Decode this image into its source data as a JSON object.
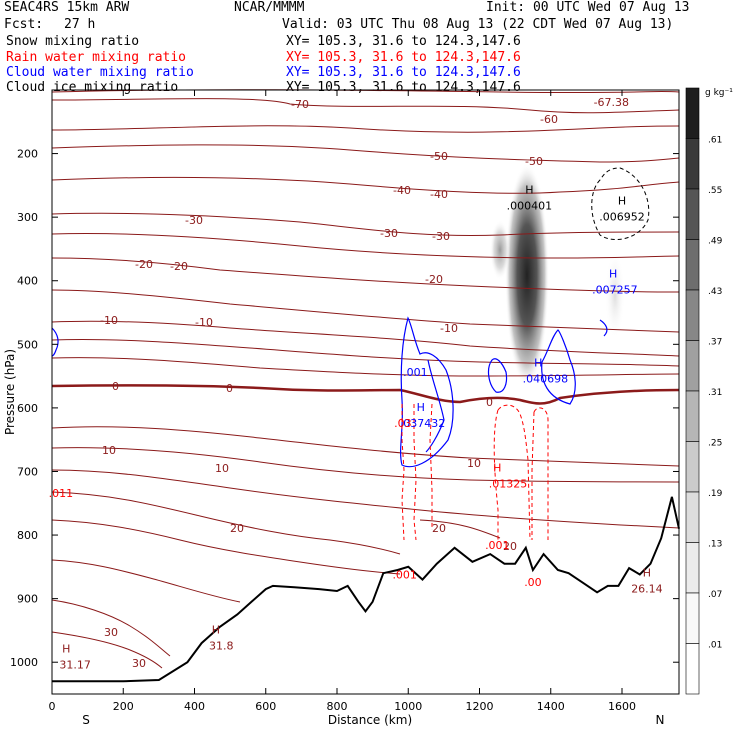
{
  "header": {
    "model": "SEAC4RS 15km ARW",
    "org": "NCAR/MMMM",
    "init": "Init: 00 UTC Wed 07 Aug 13",
    "fcst_label": "Fcst:",
    "fcst_value": "27 h",
    "valid": "Valid: 03 UTC Thu 08 Aug 13 (22 CDT Wed 07 Aug 13)",
    "fields": [
      {
        "label": "Snow mixing ratio",
        "xy": "XY= 105.3, 31.6 to 124.3,147.6",
        "color": "#000000"
      },
      {
        "label": "Rain water mixing ratio",
        "xy": "XY= 105.3, 31.6 to 124.3,147.6",
        "color": "#ff0000"
      },
      {
        "label": "Cloud water mixing ratio",
        "xy": "XY= 105.3, 31.6 to 124.3,147.6",
        "color": "#0000ff"
      },
      {
        "label": "Cloud ice mixing ratio",
        "xy": "XY= 105.3, 31.6 to 124.3,147.6",
        "color": "#000000"
      }
    ]
  },
  "chart_data": {
    "type": "cross-section contour",
    "xlabel": "Distance (km)",
    "ylabel": "Pressure (hPa)",
    "xlim": [
      0,
      1760
    ],
    "ylim": [
      1050,
      100
    ],
    "x_ticks": [
      0,
      200,
      400,
      600,
      800,
      1000,
      1200,
      1400,
      1600
    ],
    "y_ticks": [
      200,
      300,
      400,
      500,
      600,
      700,
      800,
      900,
      1000
    ],
    "end_labels": {
      "left": "S",
      "right": "N"
    },
    "colorbar": {
      "unit": "g kg⁻¹",
      "ticks": [
        ".61",
        ".55",
        ".49",
        ".43",
        ".37",
        ".31",
        ".25",
        ".19",
        ".13",
        ".07",
        ".01"
      ],
      "colors": [
        "#1e1e1e",
        "#3a3a3a",
        "#555555",
        "#6e6e6e",
        "#878787",
        "#a0a0a0",
        "#b6b6b6",
        "#cbcbcb",
        "#dddddd",
        "#ececec",
        "#f8f8f8",
        "#ffffff"
      ]
    },
    "isotherms_celsius": [
      {
        "value": -70,
        "label": "-70"
      },
      {
        "value": -60,
        "label": "-60"
      },
      {
        "value": -50,
        "label": "-50"
      },
      {
        "value": -40,
        "label": "-40"
      },
      {
        "value": -30,
        "label": "-30"
      },
      {
        "value": -20,
        "label": "-20"
      },
      {
        "value": -10,
        "label": "-10"
      },
      {
        "value": 0,
        "label": "0"
      },
      {
        "value": 10,
        "label": "10"
      },
      {
        "value": 20,
        "label": "20"
      },
      {
        "value": 30,
        "label": "30"
      }
    ],
    "annotations": [
      {
        "text": "-67.38",
        "x": 1570,
        "p": 125,
        "color": "#8b1a1a"
      },
      {
        "text": "H",
        "x": 1340,
        "p": 263,
        "color": "#000000"
      },
      {
        "text": ".000401",
        "x": 1340,
        "p": 288,
        "color": "#000000"
      },
      {
        "text": "H",
        "x": 1600,
        "p": 280,
        "color": "#000000"
      },
      {
        "text": ".006952",
        "x": 1600,
        "p": 305,
        "color": "#000000"
      },
      {
        "text": "H",
        "x": 1575,
        "p": 395,
        "color": "#0000ff"
      },
      {
        "text": ".007257",
        "x": 1580,
        "p": 420,
        "color": "#0000ff"
      },
      {
        "text": "H",
        "x": 1365,
        "p": 535,
        "color": "#0000ff"
      },
      {
        "text": ".040698",
        "x": 1385,
        "p": 560,
        "color": "#0000ff"
      },
      {
        "text": ".001",
        "x": 1020,
        "p": 550,
        "color": "#0000ff"
      },
      {
        "text": "H",
        "x": 1035,
        "p": 605,
        "color": "#0000ff"
      },
      {
        "text": ".037432",
        "x": 1040,
        "p": 630,
        "color": "#0000ff"
      },
      {
        "text": ".03",
        "x": 985,
        "p": 630,
        "color": "#ff0000"
      },
      {
        "text": "H",
        "x": 1250,
        "p": 700,
        "color": "#ff0000"
      },
      {
        "text": ".01325",
        "x": 1280,
        "p": 725,
        "color": "#ff0000"
      },
      {
        "text": ".001",
        "x": 1250,
        "p": 822,
        "color": "#ff0000"
      },
      {
        "text": ".001",
        "x": 990,
        "p": 868,
        "color": "#ff0000"
      },
      {
        "text": ".00",
        "x": 1350,
        "p": 880,
        "color": "#ff0000"
      },
      {
        "text": ".011",
        "x": 25,
        "p": 740,
        "color": "#ff0000"
      },
      {
        "text": "H",
        "x": 40,
        "p": 985,
        "color": "#8b1a1a"
      },
      {
        "text": "31.17",
        "x": 65,
        "p": 1010,
        "color": "#8b1a1a"
      },
      {
        "text": "H",
        "x": 460,
        "p": 955,
        "color": "#8b1a1a"
      },
      {
        "text": "31.8",
        "x": 475,
        "p": 980,
        "color": "#8b1a1a"
      },
      {
        "text": "H",
        "x": 1670,
        "p": 865,
        "color": "#8b1a1a"
      },
      {
        "text": "26.14",
        "x": 1670,
        "p": 890,
        "color": "#8b1a1a"
      }
    ],
    "terrain_pressure_hpa": [
      [
        0,
        1030
      ],
      [
        100,
        1030
      ],
      [
        200,
        1030
      ],
      [
        300,
        1028
      ],
      [
        380,
        1000
      ],
      [
        420,
        970
      ],
      [
        470,
        945
      ],
      [
        520,
        925
      ],
      [
        560,
        905
      ],
      [
        600,
        885
      ],
      [
        620,
        880
      ],
      [
        680,
        882
      ],
      [
        750,
        885
      ],
      [
        800,
        888
      ],
      [
        830,
        880
      ],
      [
        860,
        905
      ],
      [
        880,
        920
      ],
      [
        900,
        905
      ],
      [
        930,
        860
      ],
      [
        970,
        855
      ],
      [
        1000,
        850
      ],
      [
        1040,
        870
      ],
      [
        1080,
        845
      ],
      [
        1130,
        820
      ],
      [
        1180,
        842
      ],
      [
        1230,
        830
      ],
      [
        1270,
        845
      ],
      [
        1300,
        845
      ],
      [
        1330,
        820
      ],
      [
        1350,
        855
      ],
      [
        1380,
        830
      ],
      [
        1420,
        855
      ],
      [
        1450,
        860
      ],
      [
        1490,
        875
      ],
      [
        1530,
        890
      ],
      [
        1560,
        880
      ],
      [
        1590,
        880
      ],
      [
        1620,
        852
      ],
      [
        1650,
        862
      ],
      [
        1680,
        845
      ],
      [
        1710,
        805
      ],
      [
        1740,
        740
      ],
      [
        1760,
        790
      ]
    ]
  }
}
